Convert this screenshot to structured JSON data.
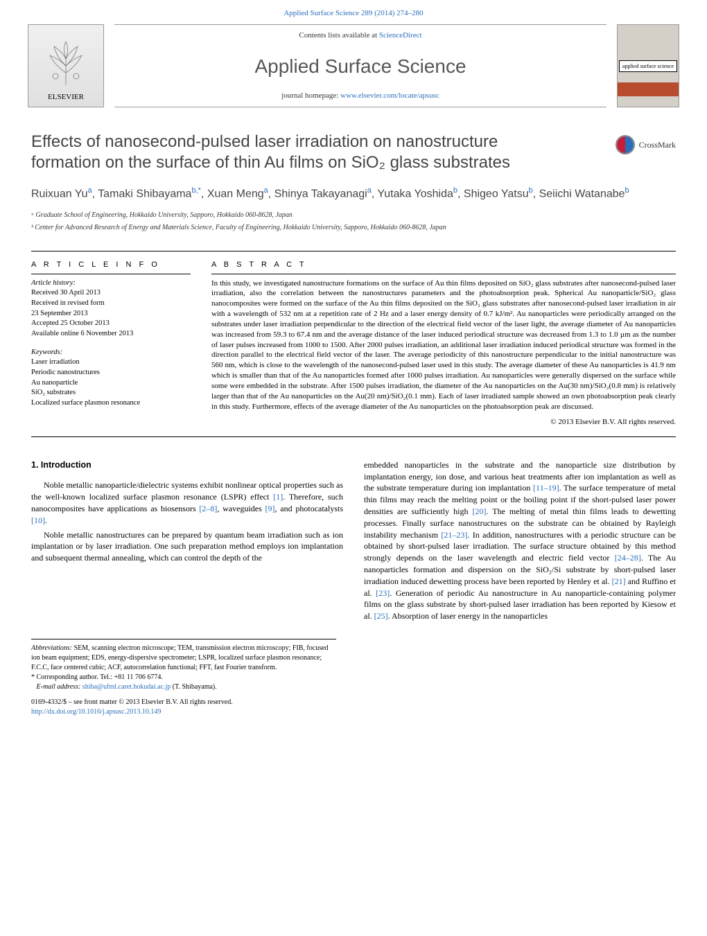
{
  "top_link": "Applied Surface Science 289 (2014) 274–280",
  "header": {
    "elsevier_label": "ELSEVIER",
    "contents_prefix": "Contents lists available at ",
    "contents_link": "ScienceDirect",
    "journal_title": "Applied Surface Science",
    "homepage_prefix": "journal homepage: ",
    "homepage_link": "www.elsevier.com/locate/apsusc",
    "cover_label": "applied surface science"
  },
  "crossmark_label": "CrossMark",
  "article": {
    "title_line1": "Effects of nanosecond-pulsed laser irradiation on nanostructure",
    "title_line2": "formation on the surface of thin Au films on SiO₂ glass substrates",
    "authors_html": "Ruixuan Yu<sup>a</sup>, Tamaki Shibayama<sup>b,*</sup>, Xuan Meng<sup>a</sup>, Shinya Takayanagi<sup>a</sup>, Yutaka Yoshida<sup>b</sup>, Shigeo Yatsu<sup>b</sup>, Seiichi Watanabe<sup>b</sup>",
    "affiliations": [
      "ᵃ Graduate School of Engineering, Hokkaido University, Sapporo, Hokkaido 060-8628, Japan",
      "ᵇ Center for Advanced Research of Energy and Materials Science, Faculty of Engineering, Hokkaido University, Sapporo, Hokkaido 060-8628, Japan"
    ]
  },
  "info": {
    "heading": "A R T I C L E   I N F O",
    "history_label": "Article history:",
    "history": [
      "Received 30 April 2013",
      "Received in revised form",
      "23 September 2013",
      "Accepted 25 October 2013",
      "Available online 6 November 2013"
    ],
    "keywords_label": "Keywords:",
    "keywords": [
      "Laser irradiation",
      "Periodic nanostructures",
      "Au nanoparticle",
      "SiO₂ substrates",
      "Localized surface plasmon resonance"
    ]
  },
  "abstract": {
    "heading": "A B S T R A C T",
    "text": "In this study, we investigated nanostructure formations on the surface of Au thin films deposited on SiO₂ glass substrates after nanosecond-pulsed laser irradiation, also the correlation between the nanostructures parameters and the photoabsorption peak. Spherical Au nanoparticle/SiO₂ glass nanocomposites were formed on the surface of the Au thin films deposited on the SiO₂ glass substrates after nanosecond-pulsed laser irradiation in air with a wavelength of 532 nm at a repetition rate of 2 Hz and a laser energy density of 0.7 kJ/m². Au nanoparticles were periodically arranged on the substrates under laser irradiation perpendicular to the direction of the electrical field vector of the laser light, the average diameter of Au nanoparticles was increased from 59.3 to 67.4 nm and the average distance of the laser induced periodical structure was decreased from 1.3 to 1.0 µm as the number of laser pulses increased from 1000 to 1500. After 2000 pulses irradiation, an additional laser irradiation induced periodical structure was formed in the direction parallel to the electrical field vector of the laser. The average periodicity of this nanostructure perpendicular to the initial nanostructure was 560 nm, which is close to the wavelength of the nanosecond-pulsed laser used in this study. The average diameter of these Au nanoparticles is 41.9 nm which is smaller than that of the Au nanoparticles formed after 1000 pulses irradiation. Au nanoparticles were generally dispersed on the surface while some were embedded in the substrate. After 1500 pulses irradiation, the diameter of the Au nanoparticles on the Au(30 nm)/SiO₂(0.8 mm) is relatively larger than that of the Au nanoparticles on the Au(20 nm)/SiO₂(0.1 mm). Each of laser irradiated sample showed an own photoabsorption peak clearly in this study. Furthermore, effects of the average diameter of the Au nanoparticles on the photoabsorption peak are discussed.",
    "copyright": "© 2013 Elsevier B.V. All rights reserved."
  },
  "body": {
    "section_heading": "1.  Introduction",
    "col1_p1": "Noble metallic nanoparticle/dielectric systems exhibit nonlinear optical properties such as the well-known localized surface plasmon resonance (LSPR) effect [1]. Therefore, such nanocomposites have applications as biosensors [2–8], waveguides [9], and photocatalysts [10].",
    "col1_p2": "Noble metallic nanostructures can be prepared by quantum beam irradiation such as ion implantation or by laser irradiation. One such preparation method employs ion implantation and subsequent thermal annealing, which can control the depth of the",
    "col2_p1": "embedded nanoparticles in the substrate and the nanoparticle size distribution by implantation energy, ion dose, and various heat treatments after ion implantation as well as the substrate temperature during ion implantation [11–19]. The surface temperature of metal thin films may reach the melting point or the boiling point if the short-pulsed laser power densities are sufficiently high [20]. The melting of metal thin films leads to dewetting processes. Finally surface nanostructures on the substrate can be obtained by Rayleigh instability mechanism [21–23]. In addition, nanostructures with a periodic structure can be obtained by short-pulsed laser irradiation. The surface structure obtained by this method strongly depends on the laser wavelength and electric field vector [24–28]. The Au nanoparticles formation and dispersion on the SiO₂/Si substrate by short-pulsed laser irradiation induced dewetting process have been reported by Henley et al. [21] and Ruffino et al. [23]. Generation of periodic Au nanostructure in Au nanoparticle-containing polymer films on the glass substrate by short-pulsed laser irradiation has been reported by Kiesow et al. [25]. Absorption of laser energy in the nanoparticles"
  },
  "footnotes": {
    "abbr_label": "Abbreviations:",
    "abbr_text": " SEM, scanning electron microscope; TEM, transmission electron microscopy; FIB, focused ion beam equipment; EDS, energy-dispersive spectrometer; LSPR, localized surface plasmon resonance; F.C.C, face centered cubic; ACF, autocorrelation functional; FFT, fast Fourier transform.",
    "corr_label": "* Corresponding author. Tel.: +81 11 706 6774.",
    "email_label": "E-mail address: ",
    "email": "shiba@ufml.caret.hokudai.ac.jp",
    "email_suffix": " (T. Shibayama)."
  },
  "bottom": {
    "issn_line": "0169-4332/$ – see front matter © 2013 Elsevier B.V. All rights reserved.",
    "doi": "http://dx.doi.org/10.1016/j.apsusc.2013.10.149"
  },
  "colors": {
    "link": "#2a6ebb",
    "text": "#000000",
    "heading_gray": "#444444",
    "rule": "#000000"
  }
}
